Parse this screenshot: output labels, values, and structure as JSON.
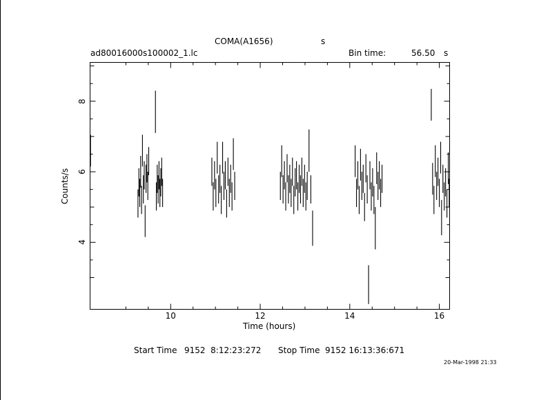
{
  "chart_data": {
    "type": "scatter",
    "title": "COMA(A1656)",
    "title_suffix": "s",
    "subtitle_left": "ad80016000s100002_1.lc",
    "bin_time_label": "Bin time:",
    "bin_time_value": "56.50",
    "bin_time_unit": "s",
    "xlabel": "Time (hours)",
    "ylabel": "Counts/s",
    "xlim": [
      8.2,
      16.23
    ],
    "ylim": [
      2.1,
      9.1
    ],
    "x_ticks": [
      10,
      12,
      14,
      16
    ],
    "y_ticks": [
      4,
      6,
      8
    ],
    "grid": false,
    "error_bars": true,
    "series": [
      {
        "points": [
          [
            8.21,
            6.6,
            0.45
          ],
          [
            9.27,
            5.1,
            0.4
          ],
          [
            9.29,
            5.7,
            0.4
          ],
          [
            9.31,
            5.4,
            0.4
          ],
          [
            9.33,
            6.0,
            0.45
          ],
          [
            9.35,
            5.2,
            0.4
          ],
          [
            9.37,
            6.6,
            0.45
          ],
          [
            9.39,
            5.5,
            0.4
          ],
          [
            9.41,
            5.9,
            0.4
          ],
          [
            9.43,
            4.6,
            0.45
          ],
          [
            9.45,
            5.8,
            0.4
          ],
          [
            9.47,
            6.1,
            0.4
          ],
          [
            9.49,
            5.6,
            0.4
          ],
          [
            9.51,
            6.3,
            0.4
          ],
          [
            9.66,
            7.7,
            0.6
          ],
          [
            9.68,
            5.3,
            0.4
          ],
          [
            9.7,
            5.8,
            0.4
          ],
          [
            9.72,
            5.5,
            0.4
          ],
          [
            9.74,
            5.9,
            0.4
          ],
          [
            9.76,
            5.4,
            0.4
          ],
          [
            9.78,
            5.7,
            0.4
          ],
          [
            9.8,
            6.0,
            0.4
          ],
          [
            9.82,
            5.4,
            0.4
          ],
          [
            10.92,
            6.0,
            0.4
          ],
          [
            10.95,
            5.3,
            0.4
          ],
          [
            10.98,
            5.9,
            0.4
          ],
          [
            11.01,
            5.4,
            0.4
          ],
          [
            11.04,
            6.4,
            0.45
          ],
          [
            11.07,
            5.5,
            0.4
          ],
          [
            11.1,
            5.8,
            0.4
          ],
          [
            11.13,
            5.2,
            0.4
          ],
          [
            11.16,
            6.4,
            0.45
          ],
          [
            11.19,
            5.6,
            0.4
          ],
          [
            11.22,
            5.9,
            0.4
          ],
          [
            11.25,
            5.1,
            0.4
          ],
          [
            11.28,
            6.0,
            0.4
          ],
          [
            11.31,
            5.4,
            0.4
          ],
          [
            11.34,
            5.8,
            0.4
          ],
          [
            11.37,
            5.3,
            0.4
          ],
          [
            11.4,
            6.5,
            0.45
          ],
          [
            11.43,
            5.6,
            0.4
          ],
          [
            12.45,
            5.6,
            0.4
          ],
          [
            12.48,
            6.3,
            0.45
          ],
          [
            12.51,
            5.5,
            0.4
          ],
          [
            12.54,
            5.9,
            0.4
          ],
          [
            12.57,
            5.3,
            0.4
          ],
          [
            12.6,
            6.1,
            0.4
          ],
          [
            12.63,
            5.5,
            0.4
          ],
          [
            12.66,
            5.8,
            0.4
          ],
          [
            12.69,
            5.4,
            0.4
          ],
          [
            12.72,
            6.0,
            0.4
          ],
          [
            12.75,
            5.2,
            0.4
          ],
          [
            12.78,
            5.7,
            0.4
          ],
          [
            12.81,
            5.9,
            0.4
          ],
          [
            12.84,
            5.3,
            0.4
          ],
          [
            12.87,
            5.8,
            0.4
          ],
          [
            12.9,
            5.5,
            0.4
          ],
          [
            12.93,
            6.0,
            0.4
          ],
          [
            12.96,
            5.4,
            0.4
          ],
          [
            12.99,
            5.8,
            0.4
          ],
          [
            13.02,
            5.3,
            0.4
          ],
          [
            13.05,
            5.6,
            0.4
          ],
          [
            13.09,
            6.6,
            0.6
          ],
          [
            13.13,
            5.5,
            0.4
          ],
          [
            13.17,
            4.4,
            0.5
          ],
          [
            14.12,
            6.3,
            0.45
          ],
          [
            14.15,
            5.4,
            0.4
          ],
          [
            14.18,
            5.9,
            0.4
          ],
          [
            14.21,
            5.2,
            0.4
          ],
          [
            14.24,
            6.2,
            0.45
          ],
          [
            14.27,
            5.6,
            0.4
          ],
          [
            14.3,
            5.8,
            0.4
          ],
          [
            14.33,
            5.0,
            0.4
          ],
          [
            14.36,
            6.1,
            0.4
          ],
          [
            14.39,
            5.5,
            0.4
          ],
          [
            14.42,
            2.8,
            0.55
          ],
          [
            14.45,
            5.9,
            0.4
          ],
          [
            14.48,
            5.3,
            0.4
          ],
          [
            14.51,
            5.7,
            0.4
          ],
          [
            14.54,
            5.2,
            0.4
          ],
          [
            14.57,
            4.4,
            0.6
          ],
          [
            14.6,
            6.1,
            0.45
          ],
          [
            14.63,
            5.6,
            0.4
          ],
          [
            14.66,
            5.9,
            0.4
          ],
          [
            14.69,
            5.4,
            0.4
          ],
          [
            14.72,
            5.8,
            0.4
          ],
          [
            15.82,
            7.9,
            0.45
          ],
          [
            15.85,
            5.8,
            0.45
          ],
          [
            15.88,
            5.2,
            0.4
          ],
          [
            15.91,
            6.3,
            0.45
          ],
          [
            15.94,
            5.6,
            0.4
          ],
          [
            15.97,
            6.0,
            0.4
          ],
          [
            16.0,
            5.4,
            0.4
          ],
          [
            16.03,
            6.4,
            0.45
          ],
          [
            16.05,
            4.7,
            0.5
          ],
          [
            16.08,
            5.8,
            0.4
          ],
          [
            16.11,
            5.3,
            0.4
          ],
          [
            16.14,
            5.7,
            0.4
          ],
          [
            16.17,
            5.1,
            0.4
          ],
          [
            16.2,
            6.1,
            0.45
          ],
          [
            16.22,
            5.4,
            0.4
          ]
        ]
      }
    ]
  },
  "footer": {
    "start_label": "Start Time",
    "start_value": "9152  8:12:23:272",
    "stop_label": "Stop Time",
    "stop_value": "9152 16:13:36:671",
    "timestamp": "20-Mar-1998 21:33"
  }
}
